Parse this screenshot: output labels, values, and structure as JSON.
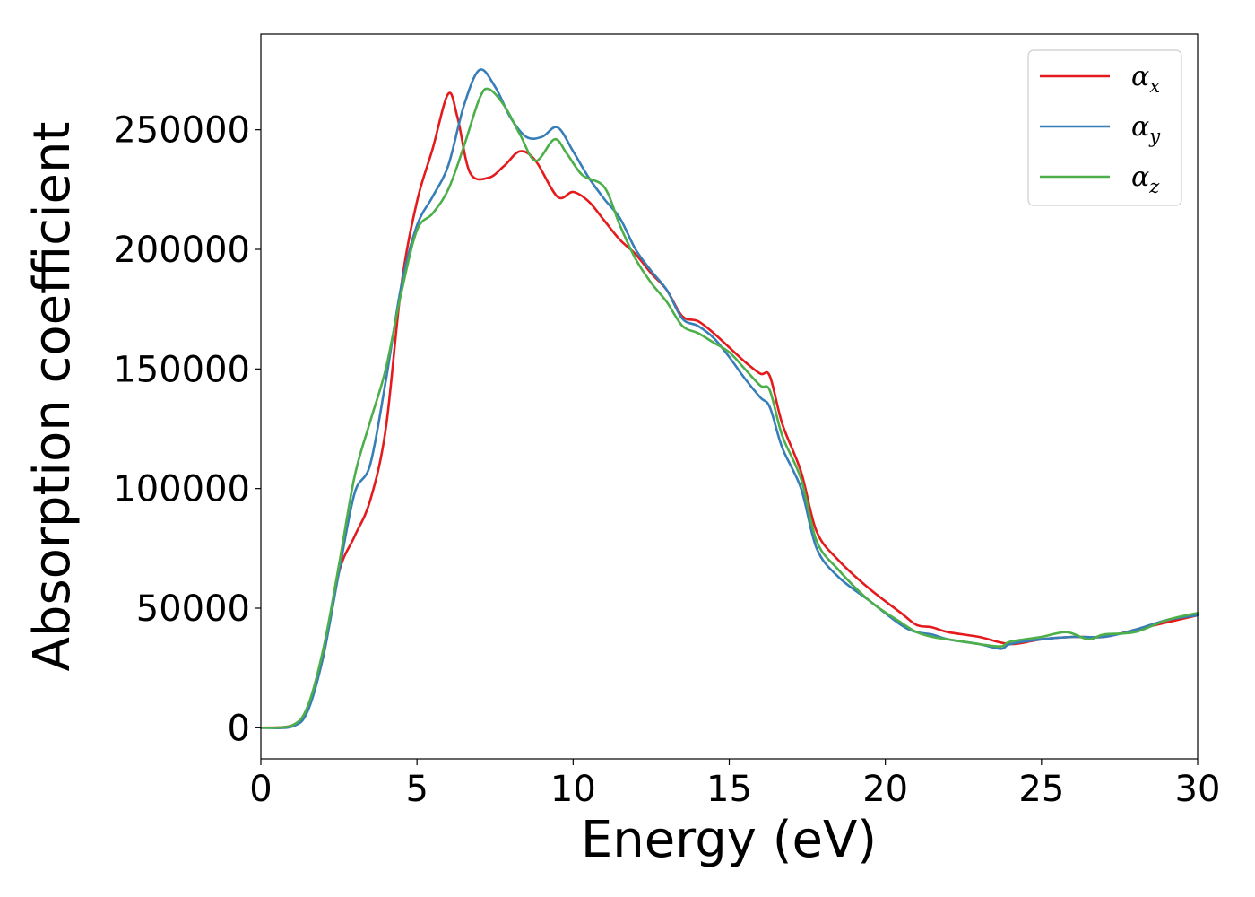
{
  "chart_data": {
    "type": "line",
    "title": "",
    "xlabel": "Energy (eV)",
    "ylabel": "Absorption coefficient",
    "xlim": [
      0,
      30
    ],
    "ylim": [
      -13000,
      290000
    ],
    "xticks": [
      0,
      5,
      10,
      15,
      20,
      25,
      30
    ],
    "yticks": [
      0,
      50000,
      100000,
      150000,
      200000,
      250000
    ],
    "grid": false,
    "legend_position": "top-right",
    "series": [
      {
        "name": "α_x",
        "label_base": "α",
        "label_sub": "x",
        "color": "#e41a1c",
        "points": [
          [
            0,
            0
          ],
          [
            1,
            1000
          ],
          [
            1.5,
            8000
          ],
          [
            2,
            30000
          ],
          [
            2.5,
            65000
          ],
          [
            3,
            80000
          ],
          [
            3.5,
            95000
          ],
          [
            4,
            125000
          ],
          [
            4.5,
            185000
          ],
          [
            5,
            220000
          ],
          [
            5.5,
            242000
          ],
          [
            6,
            265000
          ],
          [
            6.3,
            255000
          ],
          [
            6.7,
            232000
          ],
          [
            7.3,
            230000
          ],
          [
            7.8,
            235000
          ],
          [
            8.3,
            241000
          ],
          [
            8.8,
            237000
          ],
          [
            9.5,
            222000
          ],
          [
            10,
            224000
          ],
          [
            10.5,
            220000
          ],
          [
            11,
            212000
          ],
          [
            11.5,
            204000
          ],
          [
            12,
            198000
          ],
          [
            12.5,
            190000
          ],
          [
            13,
            183000
          ],
          [
            13.5,
            172000
          ],
          [
            14,
            170000
          ],
          [
            14.5,
            165000
          ],
          [
            15,
            159000
          ],
          [
            15.5,
            153000
          ],
          [
            16,
            148000
          ],
          [
            16.3,
            147000
          ],
          [
            16.7,
            127000
          ],
          [
            17.3,
            107000
          ],
          [
            17.8,
            82000
          ],
          [
            18.5,
            70000
          ],
          [
            19.5,
            58000
          ],
          [
            20.5,
            48000
          ],
          [
            21,
            43000
          ],
          [
            21.5,
            42000
          ],
          [
            22,
            40000
          ],
          [
            23,
            38000
          ],
          [
            24,
            35000
          ],
          [
            25,
            37000
          ],
          [
            26,
            38000
          ],
          [
            27,
            38000
          ],
          [
            28,
            41000
          ],
          [
            29,
            44000
          ],
          [
            30,
            47000
          ]
        ]
      },
      {
        "name": "α_y",
        "label_base": "α",
        "label_sub": "y",
        "color": "#377eb8",
        "points": [
          [
            0,
            0
          ],
          [
            1,
            500
          ],
          [
            1.5,
            7000
          ],
          [
            2,
            30000
          ],
          [
            2.5,
            65000
          ],
          [
            3,
            98000
          ],
          [
            3.5,
            110000
          ],
          [
            4,
            145000
          ],
          [
            4.5,
            185000
          ],
          [
            5,
            210000
          ],
          [
            5.5,
            222000
          ],
          [
            6,
            235000
          ],
          [
            6.5,
            260000
          ],
          [
            7,
            275000
          ],
          [
            7.5,
            268000
          ],
          [
            8,
            255000
          ],
          [
            8.5,
            247000
          ],
          [
            9,
            247000
          ],
          [
            9.5,
            251000
          ],
          [
            10,
            241000
          ],
          [
            10.5,
            230000
          ],
          [
            11,
            221000
          ],
          [
            11.5,
            213000
          ],
          [
            12,
            200000
          ],
          [
            12.5,
            191000
          ],
          [
            13,
            183000
          ],
          [
            13.5,
            171000
          ],
          [
            14,
            168000
          ],
          [
            14.5,
            163000
          ],
          [
            15,
            155000
          ],
          [
            15.5,
            146000
          ],
          [
            16,
            138000
          ],
          [
            16.3,
            134000
          ],
          [
            16.7,
            117000
          ],
          [
            17.3,
            100000
          ],
          [
            17.8,
            75000
          ],
          [
            18.5,
            63000
          ],
          [
            19.5,
            53000
          ],
          [
            20.5,
            43000
          ],
          [
            21,
            40000
          ],
          [
            21.5,
            39000
          ],
          [
            22,
            37000
          ],
          [
            23,
            35000
          ],
          [
            23.7,
            33000
          ],
          [
            24,
            35000
          ],
          [
            25,
            37000
          ],
          [
            26,
            38000
          ],
          [
            27,
            38000
          ],
          [
            28,
            41000
          ],
          [
            29,
            45000
          ],
          [
            30,
            47000
          ]
        ]
      },
      {
        "name": "α_z",
        "label_base": "α",
        "label_sub": "z",
        "color": "#4daf4a",
        "points": [
          [
            0,
            0
          ],
          [
            1,
            1000
          ],
          [
            1.5,
            9000
          ],
          [
            2,
            33000
          ],
          [
            2.5,
            68000
          ],
          [
            3,
            105000
          ],
          [
            3.5,
            128000
          ],
          [
            4,
            150000
          ],
          [
            4.5,
            182000
          ],
          [
            5,
            208000
          ],
          [
            5.5,
            215000
          ],
          [
            6,
            225000
          ],
          [
            6.5,
            243000
          ],
          [
            7,
            263000
          ],
          [
            7.3,
            267000
          ],
          [
            7.8,
            260000
          ],
          [
            8.3,
            248000
          ],
          [
            8.8,
            237000
          ],
          [
            9.4,
            246000
          ],
          [
            9.8,
            240000
          ],
          [
            10.3,
            231000
          ],
          [
            11,
            226000
          ],
          [
            11.5,
            210000
          ],
          [
            12,
            196000
          ],
          [
            12.5,
            186000
          ],
          [
            13,
            178000
          ],
          [
            13.5,
            168000
          ],
          [
            14,
            165000
          ],
          [
            14.5,
            161000
          ],
          [
            15,
            157000
          ],
          [
            15.5,
            150000
          ],
          [
            16,
            143000
          ],
          [
            16.3,
            141000
          ],
          [
            16.7,
            122000
          ],
          [
            17.3,
            104000
          ],
          [
            17.8,
            78000
          ],
          [
            18.5,
            66000
          ],
          [
            19.5,
            53000
          ],
          [
            20.5,
            44000
          ],
          [
            21,
            40000
          ],
          [
            21.5,
            38000
          ],
          [
            22,
            37000
          ],
          [
            23,
            35000
          ],
          [
            23.7,
            34000
          ],
          [
            24,
            36000
          ],
          [
            25,
            38000
          ],
          [
            25.8,
            40000
          ],
          [
            26.5,
            37000
          ],
          [
            27,
            39000
          ],
          [
            28,
            40000
          ],
          [
            29,
            45000
          ],
          [
            30,
            48000
          ]
        ]
      }
    ]
  }
}
